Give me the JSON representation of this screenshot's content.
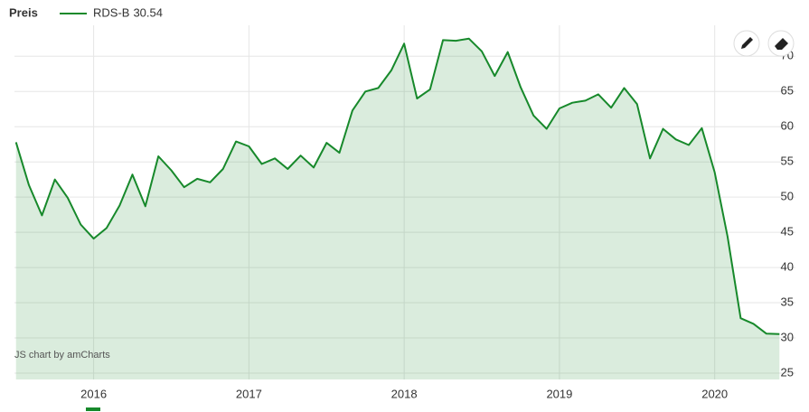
{
  "chart_data": {
    "type": "area",
    "legend_title": "Preis",
    "credit": "JS chart by amCharts",
    "x": [
      2015.5,
      2015.583,
      2015.667,
      2015.75,
      2015.833,
      2015.917,
      2016.0,
      2016.083,
      2016.167,
      2016.25,
      2016.333,
      2016.417,
      2016.5,
      2016.583,
      2016.667,
      2016.75,
      2016.833,
      2016.917,
      2017.0,
      2017.083,
      2017.167,
      2017.25,
      2017.333,
      2017.417,
      2017.5,
      2017.583,
      2017.667,
      2017.75,
      2017.833,
      2017.917,
      2018.0,
      2018.083,
      2018.167,
      2018.25,
      2018.333,
      2018.417,
      2018.5,
      2018.583,
      2018.667,
      2018.75,
      2018.833,
      2018.917,
      2019.0,
      2019.083,
      2019.167,
      2019.25,
      2019.333,
      2019.417,
      2019.5,
      2019.583,
      2019.667,
      2019.75,
      2019.833,
      2019.917,
      2020.0,
      2020.083,
      2020.167,
      2020.25,
      2020.333,
      2020.417
    ],
    "series": [
      {
        "name": "RDS-B",
        "color": "#17892b",
        "values": [
          57.8,
          51.7,
          47.4,
          52.5,
          49.9,
          46.1,
          44.1,
          45.6,
          48.8,
          53.2,
          48.7,
          55.8,
          53.8,
          51.4,
          52.6,
          52.1,
          54.0,
          57.9,
          57.2,
          54.7,
          55.5,
          54.0,
          55.9,
          54.2,
          57.7,
          56.3,
          62.3,
          65.0,
          65.5,
          68.0,
          71.8,
          64.0,
          65.3,
          72.3,
          72.2,
          72.5,
          70.7,
          67.2,
          70.6,
          65.6,
          61.6,
          59.7,
          62.6,
          63.4,
          63.7,
          64.6,
          62.7,
          65.5,
          63.2,
          55.5,
          59.7,
          58.2,
          57.4,
          59.8,
          53.5,
          44.4,
          32.8,
          32.0,
          30.6,
          30.54
        ]
      }
    ],
    "xlim": [
      2015.49,
      2020.52
    ],
    "xticks": [
      2016,
      2017,
      2018,
      2019,
      2020
    ],
    "ylim": [
      24.1,
      74.4
    ],
    "yticks": [
      25,
      30,
      35,
      40,
      45,
      50,
      55,
      60,
      65,
      70
    ],
    "grid": true
  }
}
